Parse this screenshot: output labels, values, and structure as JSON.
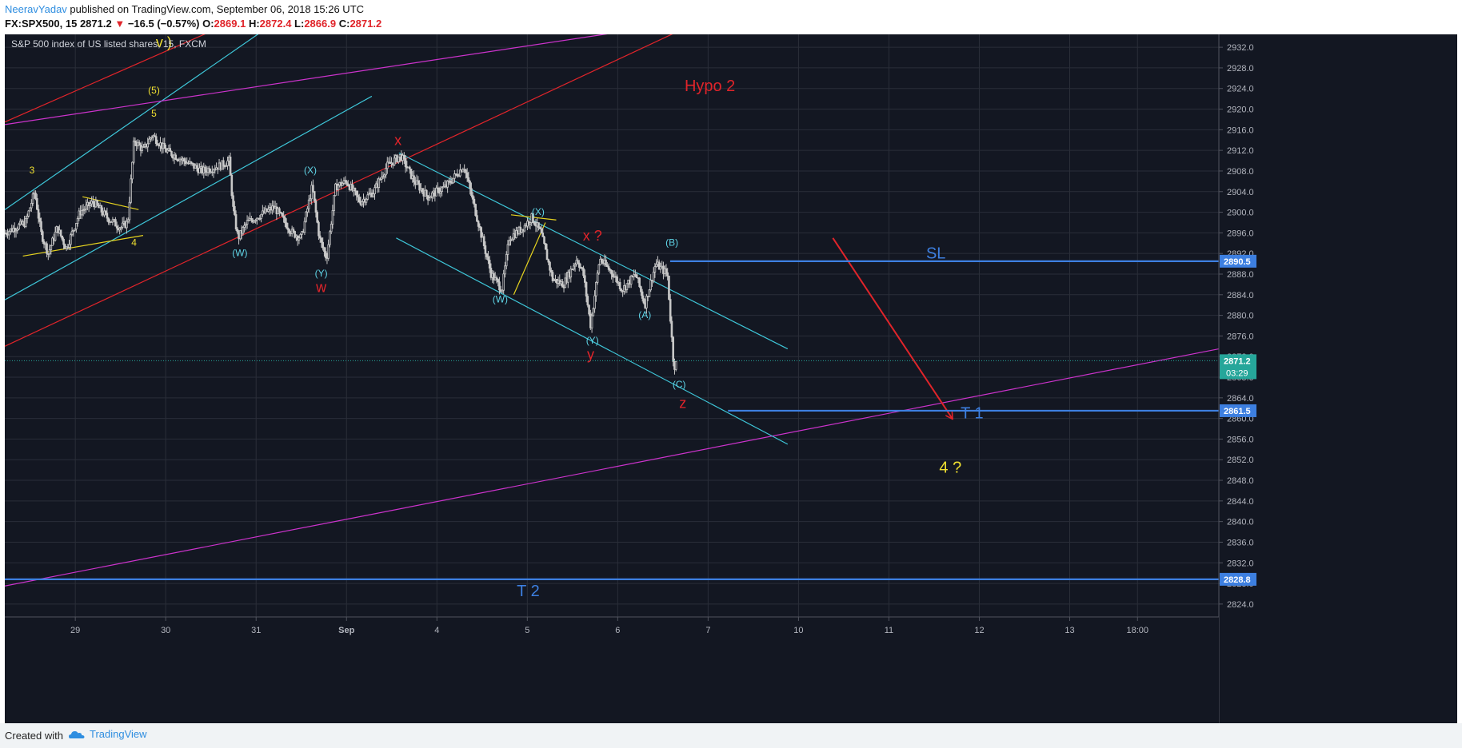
{
  "header": {
    "author": "NeeravYadav",
    "published_text": " published on TradingView.com, September 06, 2018 15:26 UTC",
    "symbol": "FX:SPX500, 15",
    "last": "2871.2",
    "change": "−16.5 (−0.57%)",
    "open_label": "O:",
    "open": "2869.1",
    "high_label": "H:",
    "high": "2872.4",
    "low_label": "L:",
    "low": "2866.9",
    "close_label": "C:",
    "close": "2871.2"
  },
  "footer": {
    "created_with": "Created with",
    "brand": "TradingView"
  },
  "colors": {
    "background": "#131722",
    "grid": "#2a2e39",
    "candle": "#c8c8c8",
    "cyan": "#3ec6d8",
    "red": "#e0242a",
    "magenta": "#cc33cc",
    "yellow": "#e6d31f",
    "blue_level": "#3d7fe0",
    "text_cyan": "#5fd4e6",
    "text_yellow": "#f0e030",
    "axis_text": "#b2b5be"
  },
  "chart_data": {
    "type": "candlestick",
    "title": "S&P 500 index of US listed shares, 15, FXCM",
    "y_ticks": [
      2824.0,
      2828.0,
      2832.0,
      2836.0,
      2840.0,
      2844.0,
      2848.0,
      2852.0,
      2856.0,
      2860.0,
      2864.0,
      2868.0,
      2872.0,
      2876.0,
      2880.0,
      2884.0,
      2888.0,
      2892.0,
      2896.0,
      2900.0,
      2904.0,
      2908.0,
      2912.0,
      2916.0,
      2920.0,
      2924.0,
      2928.0,
      2932.0
    ],
    "ylim": [
      2821.5,
      2934.5
    ],
    "x_ticks": [
      {
        "label": "29",
        "t": 1.0
      },
      {
        "label": "30",
        "t": 2.0
      },
      {
        "label": "31",
        "t": 3.0
      },
      {
        "label": "Sep",
        "t": 4.0
      },
      {
        "label": "4",
        "t": 5.0
      },
      {
        "label": "5",
        "t": 6.0
      },
      {
        "label": "6",
        "t": 7.0
      },
      {
        "label": "7",
        "t": 8.0
      },
      {
        "label": "10",
        "t": 9.0
      },
      {
        "label": "11",
        "t": 10.0
      },
      {
        "label": "12",
        "t": 11.0
      },
      {
        "label": "13",
        "t": 12.0
      },
      {
        "label": "18:00",
        "t": 12.75
      }
    ],
    "xlim": [
      0.22,
      13.65
    ],
    "price_path": [
      [
        0.22,
        2896
      ],
      [
        0.45,
        2898
      ],
      [
        0.55,
        2904
      ],
      [
        0.62,
        2896
      ],
      [
        0.7,
        2892
      ],
      [
        0.8,
        2897
      ],
      [
        0.9,
        2893
      ],
      [
        1.05,
        2900
      ],
      [
        1.2,
        2902
      ],
      [
        1.35,
        2899
      ],
      [
        1.5,
        2897
      ],
      [
        1.58,
        2898
      ],
      [
        1.65,
        2914
      ],
      [
        1.75,
        2912
      ],
      [
        1.85,
        2915
      ],
      [
        2.0,
        2912
      ],
      [
        2.2,
        2910
      ],
      [
        2.4,
        2908
      ],
      [
        2.6,
        2909
      ],
      [
        2.7,
        2910
      ],
      [
        2.75,
        2900
      ],
      [
        2.8,
        2895
      ],
      [
        2.9,
        2898
      ],
      [
        3.0,
        2899
      ],
      [
        3.2,
        2901
      ],
      [
        3.4,
        2896
      ],
      [
        3.5,
        2895
      ],
      [
        3.62,
        2905
      ],
      [
        3.7,
        2895
      ],
      [
        3.78,
        2891
      ],
      [
        3.88,
        2905
      ],
      [
        4.0,
        2906
      ],
      [
        4.15,
        2902
      ],
      [
        4.3,
        2904
      ],
      [
        4.45,
        2909
      ],
      [
        4.6,
        2911
      ],
      [
        4.75,
        2906
      ],
      [
        4.9,
        2903
      ],
      [
        5.1,
        2905
      ],
      [
        5.3,
        2909
      ],
      [
        5.4,
        2902
      ],
      [
        5.5,
        2895
      ],
      [
        5.6,
        2888
      ],
      [
        5.72,
        2885
      ],
      [
        5.8,
        2895
      ],
      [
        5.95,
        2897
      ],
      [
        6.05,
        2899
      ],
      [
        6.15,
        2896
      ],
      [
        6.28,
        2887
      ],
      [
        6.4,
        2886
      ],
      [
        6.55,
        2891
      ],
      [
        6.62,
        2888
      ],
      [
        6.7,
        2878
      ],
      [
        6.8,
        2891
      ],
      [
        6.95,
        2888
      ],
      [
        7.05,
        2885
      ],
      [
        7.2,
        2888
      ],
      [
        7.3,
        2882
      ],
      [
        7.42,
        2890
      ],
      [
        7.55,
        2888
      ],
      [
        7.58,
        2880
      ],
      [
        7.62,
        2870
      ],
      [
        7.66,
        2871
      ]
    ],
    "current_price": 2871.2,
    "last_t": 7.66,
    "price_labels": [
      {
        "value": 2890.5,
        "text": "2890.5"
      },
      {
        "value": 2871.2,
        "text": "2871.2"
      },
      {
        "value": 2861.5,
        "text": "2861.5"
      },
      {
        "value": 2828.8,
        "text": "2828.8"
      }
    ],
    "countdown": "03:29",
    "levels": [
      {
        "name": "SL",
        "value": 2890.5,
        "t_start": 7.58
      },
      {
        "name": "T 1",
        "value": 2861.5,
        "t_start": 8.22
      },
      {
        "name": "T 2",
        "value": 2828.8,
        "t_start": 0.22
      }
    ],
    "trendlines": [
      {
        "color": "cyan",
        "p1": [
          0.22,
          2900.5
        ],
        "p2": [
          3.1,
          2935.5
        ]
      },
      {
        "color": "cyan",
        "p1": [
          0.22,
          2883.0
        ],
        "p2": [
          4.28,
          2922.5
        ]
      },
      {
        "color": "red",
        "p1": [
          0.22,
          2917.5
        ],
        "p2": [
          2.75,
          2937.0
        ]
      },
      {
        "color": "red",
        "p1": [
          0.22,
          2874.0
        ],
        "p2": [
          7.78,
          2936.0
        ]
      },
      {
        "color": "magenta",
        "p1": [
          0.22,
          2917.0
        ],
        "p2": [
          7.42,
          2936.0
        ]
      },
      {
        "color": "magenta",
        "p1": [
          0.22,
          2827.5
        ],
        "p2": [
          13.65,
          2873.5
        ]
      },
      {
        "color": "cyan",
        "p1": [
          4.58,
          2911.5
        ],
        "p2": [
          8.88,
          2873.5
        ]
      },
      {
        "color": "cyan",
        "p1": [
          4.55,
          2895.0
        ],
        "p2": [
          8.88,
          2855.0
        ]
      },
      {
        "color": "yellow",
        "p1": [
          0.42,
          2891.5
        ],
        "p2": [
          1.75,
          2895.5
        ]
      },
      {
        "color": "yellow",
        "p1": [
          1.08,
          2903.0
        ],
        "p2": [
          1.7,
          2900.5
        ]
      },
      {
        "color": "yellow",
        "p1": [
          5.82,
          2899.5
        ],
        "p2": [
          6.32,
          2898.5
        ]
      },
      {
        "color": "yellow",
        "p1": [
          5.85,
          2884.0
        ],
        "p2": [
          6.2,
          2898.0
        ]
      }
    ],
    "arrow": {
      "from": [
        9.38,
        2895.0
      ],
      "to": [
        10.7,
        2860.0
      ],
      "color": "red"
    },
    "annotations": [
      {
        "text": "3",
        "t": 0.52,
        "y": 2907.5,
        "color": "text_yellow",
        "size": 12
      },
      {
        "text": "4",
        "t": 1.65,
        "y": 2893.5,
        "color": "text_yellow",
        "size": 12
      },
      {
        "text": "5",
        "t": 1.87,
        "y": 2918.5,
        "color": "text_yellow",
        "size": 12
      },
      {
        "text": "(5)",
        "t": 1.87,
        "y": 2923.0,
        "color": "text_yellow",
        "size": 12
      },
      {
        "text": "v )",
        "t": 1.98,
        "y": 2932.0,
        "color": "text_yellow",
        "size": 18
      },
      {
        "text": "(W)",
        "t": 2.82,
        "y": 2891.5,
        "color": "text_cyan",
        "size": 12
      },
      {
        "text": "(X)",
        "t": 3.6,
        "y": 2907.5,
        "color": "text_cyan",
        "size": 12
      },
      {
        "text": "(Y)",
        "t": 3.72,
        "y": 2887.5,
        "color": "text_cyan",
        "size": 12
      },
      {
        "text": "w",
        "t": 3.72,
        "y": 2884.5,
        "color": "red",
        "size": 18
      },
      {
        "text": "x",
        "t": 4.57,
        "y": 2913.0,
        "color": "red",
        "size": 18
      },
      {
        "text": "(W)",
        "t": 5.7,
        "y": 2882.5,
        "color": "text_cyan",
        "size": 12
      },
      {
        "text": "(X)",
        "t": 6.12,
        "y": 2899.5,
        "color": "text_cyan",
        "size": 12
      },
      {
        "text": "x ?",
        "t": 6.72,
        "y": 2894.5,
        "color": "red",
        "size": 18
      },
      {
        "text": "(Y)",
        "t": 6.72,
        "y": 2874.5,
        "color": "text_cyan",
        "size": 12
      },
      {
        "text": "y",
        "t": 6.7,
        "y": 2871.5,
        "color": "red",
        "size": 18
      },
      {
        "text": "(A)",
        "t": 7.3,
        "y": 2879.5,
        "color": "text_cyan",
        "size": 12
      },
      {
        "text": "(B)",
        "t": 7.6,
        "y": 2893.5,
        "color": "text_cyan",
        "size": 12
      },
      {
        "text": "(C)",
        "t": 7.68,
        "y": 2866.0,
        "color": "text_cyan",
        "size": 12
      },
      {
        "text": "z",
        "t": 7.72,
        "y": 2862.0,
        "color": "red",
        "size": 18
      },
      {
        "text": "Hypo 2",
        "t": 8.02,
        "y": 2923.5,
        "color": "red",
        "size": 20
      },
      {
        "text": "SL",
        "t": 10.52,
        "y": 2891.0,
        "color": "blue_level",
        "size": 20
      },
      {
        "text": "T 1",
        "t": 10.92,
        "y": 2860.0,
        "color": "blue_level",
        "size": 20
      },
      {
        "text": "4 ?",
        "t": 10.68,
        "y": 2849.5,
        "color": "text_yellow",
        "size": 20
      },
      {
        "text": "T 2",
        "t": 6.01,
        "y": 2825.5,
        "color": "blue_level",
        "size": 20
      }
    ]
  }
}
